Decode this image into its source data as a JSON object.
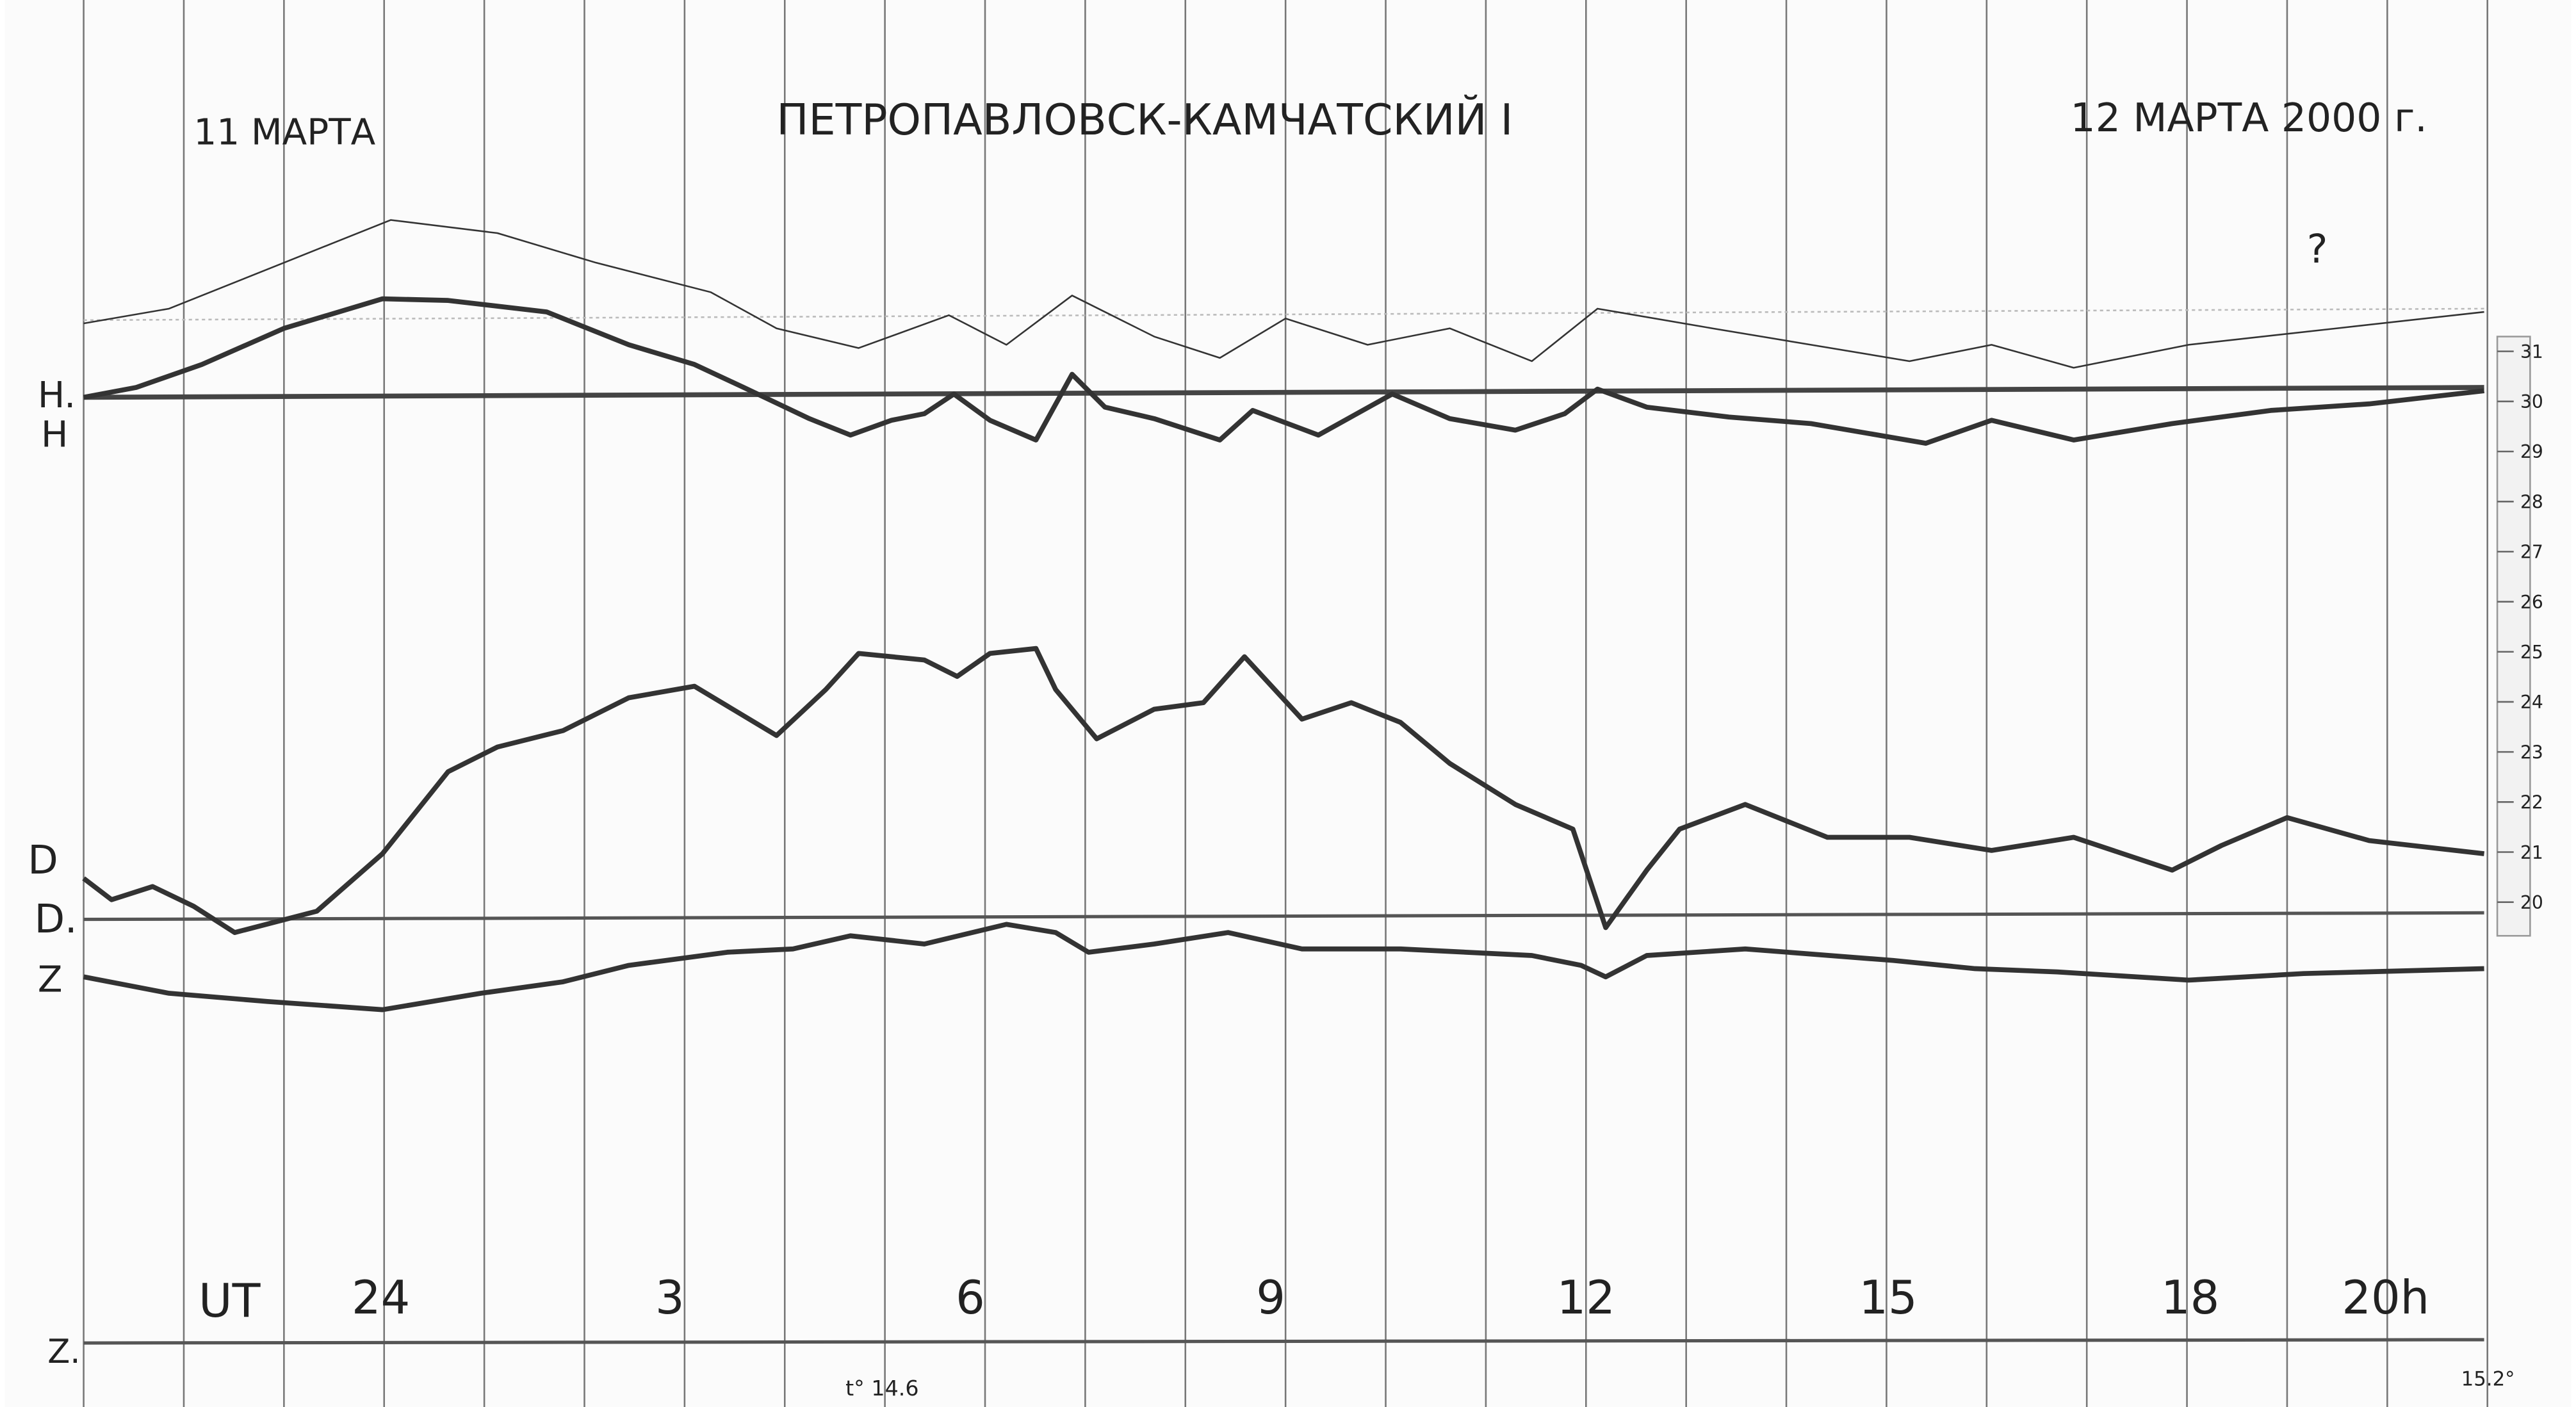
{
  "header": {
    "left_date": "11 МАРТА",
    "station": "ПЕТРОПАВЛОВСК-КАМЧАТСКИЙ I",
    "right_date": "12 МАРТА 2000 г.",
    "note": "?"
  },
  "trace_labels": {
    "h_base": "H.",
    "h": "H",
    "d": "D",
    "d_base": "D.",
    "z": "Z",
    "z_base": "Z."
  },
  "time_axis": {
    "label": "UT",
    "hours": [
      "24",
      "3",
      "6",
      "9",
      "12",
      "15",
      "18",
      "20h"
    ]
  },
  "temperatures": {
    "start": "t° 14.6",
    "end": "15.2°"
  },
  "scale": [
    "31",
    "30",
    "29",
    "28",
    "27",
    "26",
    "25",
    "24",
    "23",
    "22",
    "21",
    "20"
  ]
}
